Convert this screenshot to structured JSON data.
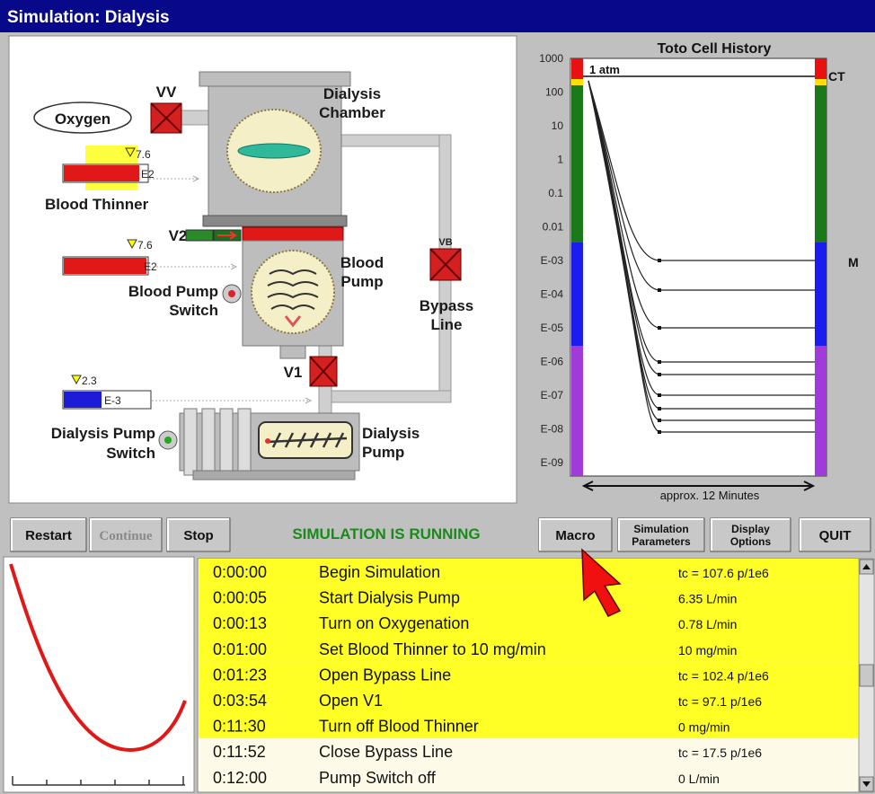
{
  "window": {
    "title": "Simulation:  Dialysis"
  },
  "diagram": {
    "oxygen": "Oxygen",
    "vv": "VV",
    "chamber": [
      "Dialysis",
      "Chamber"
    ],
    "blood_thinner": "Blood Thinner",
    "v2": "V2",
    "blood_pump": [
      "Blood",
      "Pump"
    ],
    "blood_pump_switch": [
      "Blood Pump",
      "Switch"
    ],
    "vb": "VB",
    "bypass_line": [
      "Bypass",
      "Line"
    ],
    "v1": "V1",
    "dialysis_pump_switch": [
      "Dialysis Pump",
      "Switch"
    ],
    "dialysis_pump": [
      "Dialysis",
      "Pump"
    ],
    "gauges": [
      {
        "setting": "7.6",
        "unit": "E2"
      },
      {
        "setting": "7.6",
        "unit": "E2"
      },
      {
        "setting": "2.3",
        "unit": "E-3"
      }
    ]
  },
  "history_chart": {
    "title": "Toto Cell History",
    "yticks": [
      "1000",
      "100",
      "10",
      "1",
      "0.1",
      "0.01",
      "E-03",
      "E-04",
      "E-05",
      "E-06",
      "E-07",
      "E-08",
      "E-09"
    ],
    "atm_label": "1 atm",
    "right_label": "CT",
    "side_label": "M",
    "x_label": "approx. 12 Minutes"
  },
  "buttons": {
    "restart": "Restart",
    "continue": "Continue",
    "stop": "Stop",
    "macro": "Macro",
    "simulation_parameters": [
      "Simulation",
      "Parameters"
    ],
    "display_options": [
      "Display",
      "Options"
    ],
    "quit": "QUIT"
  },
  "status": "SIMULATION IS RUNNING",
  "log": {
    "rows": [
      {
        "time": "0:00:00",
        "event": "Begin Simulation",
        "value": "tc = 107.6 p/1e6",
        "highlighted": true
      },
      {
        "time": "0:00:05",
        "event": "Start Dialysis Pump",
        "value": "6.35 L/min",
        "highlighted": true
      },
      {
        "time": "0:00:13",
        "event": "Turn on Oxygenation",
        "value": "0.78 L/min",
        "highlighted": true
      },
      {
        "time": "0:01:00",
        "event": "Set Blood Thinner to 10 mg/min",
        "value": "10 mg/min",
        "highlighted": true
      },
      {
        "time": "0:01:23",
        "event": "Open Bypass Line",
        "value": "tc = 102.4 p/1e6",
        "highlighted": true
      },
      {
        "time": "0:03:54",
        "event": "Open V1",
        "value": "tc = 97.1 p/1e6",
        "highlighted": true
      },
      {
        "time": "0:11:30",
        "event": "Turn off Blood Thinner",
        "value": "0 mg/min",
        "highlighted": true
      },
      {
        "time": "0:11:52",
        "event": "Close Bypass Line",
        "value": "tc = 17.5 p/1e6",
        "highlighted": false
      },
      {
        "time": "0:12:00",
        "event": "Pump Switch off",
        "value": "0 L/min",
        "highlighted": false
      }
    ]
  }
}
